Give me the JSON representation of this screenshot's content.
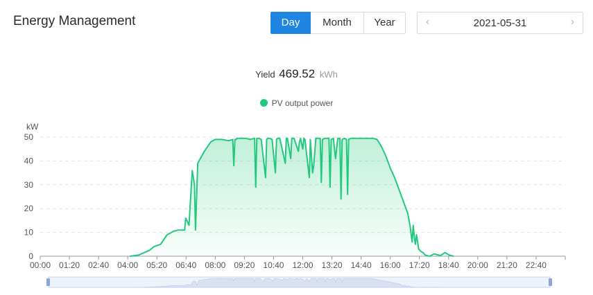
{
  "header": {
    "title": "Energy Management"
  },
  "period_tabs": [
    {
      "label": "Day",
      "active": true
    },
    {
      "label": "Month",
      "active": false
    },
    {
      "label": "Year",
      "active": false
    }
  ],
  "date_picker": {
    "value": "2021-05-31",
    "prev_icon": "chevron-left-icon",
    "next_icon": "chevron-right-icon"
  },
  "summary": {
    "label": "Yield",
    "value": "469.52",
    "unit": "kWh"
  },
  "colors": {
    "series": "#22c97c",
    "active_tab": "#1e86e2"
  },
  "chart_data": {
    "type": "area",
    "ylabel": "kW",
    "ylim": [
      0,
      50
    ],
    "yticks": [
      0,
      10,
      20,
      30,
      40,
      50
    ],
    "xlim_hours": [
      0,
      24
    ],
    "xticks": [
      "00:00",
      "01:20",
      "02:40",
      "04:00",
      "05:20",
      "06:40",
      "08:00",
      "09:20",
      "10:40",
      "12:00",
      "13:20",
      "14:40",
      "16:00",
      "17:20",
      "18:40",
      "20:00",
      "21:20",
      "22:40"
    ],
    "legend": {
      "position": "top-center",
      "entries": [
        "PV output power"
      ]
    },
    "grid": true,
    "series": [
      {
        "name": "PV output power",
        "x_hours": [
          4.1,
          4.5,
          5.0,
          5.2,
          5.5,
          5.8,
          6.1,
          6.3,
          6.6,
          6.65,
          6.8,
          6.95,
          7.05,
          7.1,
          7.2,
          7.5,
          7.8,
          8.0,
          8.3,
          8.6,
          8.8,
          8.85,
          8.9,
          8.95,
          9.0,
          9.1,
          9.3,
          9.4,
          9.6,
          9.8,
          9.85,
          9.9,
          10.0,
          10.1,
          10.3,
          10.35,
          10.4,
          10.5,
          10.6,
          10.75,
          10.8,
          10.85,
          10.95,
          11.2,
          11.25,
          11.3,
          11.45,
          11.5,
          11.6,
          11.8,
          11.85,
          11.9,
          12.0,
          12.05,
          12.1,
          12.3,
          12.35,
          12.45,
          12.5,
          12.6,
          12.8,
          12.85,
          12.9,
          13.0,
          13.2,
          13.25,
          13.3,
          13.4,
          13.5,
          13.6,
          13.7,
          13.75,
          13.8,
          13.9,
          14.0,
          14.05,
          14.1,
          14.2,
          14.25,
          14.4,
          14.6,
          14.8,
          15.0,
          15.2,
          15.4,
          15.6,
          15.8,
          16.0,
          16.2,
          16.4,
          16.6,
          16.8,
          16.9,
          17.0,
          17.05,
          17.1,
          17.15,
          17.2,
          17.25,
          17.3,
          17.4,
          17.5,
          17.6,
          17.8,
          18.0,
          18.3,
          18.5,
          18.7,
          18.9
        ],
        "values": [
          0,
          0.5,
          2.5,
          4,
          5,
          9,
          10.5,
          11,
          11,
          16,
          13,
          36,
          30,
          11,
          39,
          44,
          48,
          49,
          49,
          48.5,
          49,
          38,
          49,
          49,
          49.5,
          49.5,
          49.5,
          49.5,
          49,
          49.5,
          29,
          49.5,
          49.5,
          49,
          33,
          49,
          49.5,
          49.5,
          49,
          35,
          49,
          49.5,
          49.5,
          39,
          49.5,
          49.5,
          41,
          49.5,
          49.5,
          44,
          48,
          49.5,
          45,
          49.5,
          49,
          33,
          49,
          35,
          38,
          49.5,
          49.5,
          31,
          49,
          49.5,
          49.5,
          29,
          49,
          49.5,
          41,
          49.5,
          49.5,
          24,
          49,
          49.5,
          49,
          26,
          49,
          49.5,
          49.5,
          49.5,
          49.5,
          49.5,
          49.5,
          49.5,
          49,
          46,
          42,
          37,
          33,
          28,
          23,
          18,
          13,
          6,
          13,
          8,
          5,
          9,
          6,
          3,
          2,
          1.5,
          0.5,
          0,
          1,
          0.3,
          1.5,
          0.5,
          0
        ]
      }
    ]
  }
}
